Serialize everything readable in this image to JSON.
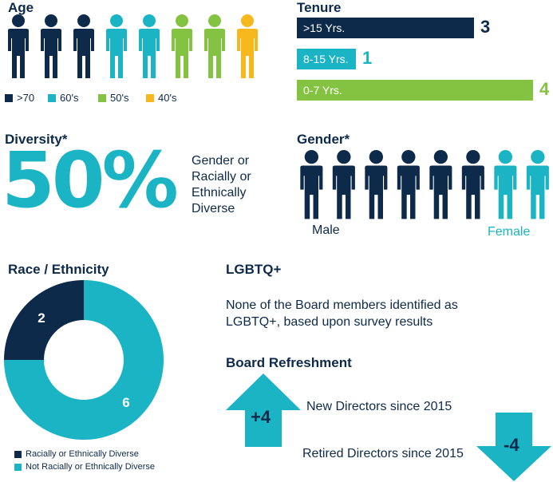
{
  "colors": {
    "navy": "#0d2a4a",
    "teal": "#1ab4c4",
    "green": "#84c341",
    "yellow": "#f6b81c"
  },
  "age": {
    "title": "Age",
    "people": [
      "navy",
      "navy",
      "navy",
      "teal",
      "teal",
      "green",
      "green",
      "yellow"
    ],
    "legend": [
      {
        "label": ">70",
        "color": "#0d2a4a"
      },
      {
        "label": "60's",
        "color": "#1ab4c4"
      },
      {
        "label": "50's",
        "color": "#84c341"
      },
      {
        "label": "40's",
        "color": "#f6b81c"
      }
    ]
  },
  "tenure": {
    "title": "Tenure",
    "bars": [
      {
        "label": ">15 Yrs.",
        "value": "3",
        "color": "#0d2a4a"
      },
      {
        "label": "8-15 Yrs.",
        "value": "1",
        "color": "#1ab4c4"
      },
      {
        "label": "0-7 Yrs.",
        "value": "4",
        "color": "#84c341"
      }
    ]
  },
  "diversity": {
    "title": "Diversity*",
    "percent": "50%",
    "description_lines": [
      "Gender or",
      "Racially or",
      "Ethnically",
      "Diverse"
    ]
  },
  "gender": {
    "title": "Gender*",
    "people": [
      "navy",
      "navy",
      "navy",
      "navy",
      "navy",
      "navy",
      "teal",
      "teal"
    ],
    "male_label": "Male",
    "female_label": "Female"
  },
  "race": {
    "title": "Race / Ethnicity",
    "legend": [
      {
        "label": "Racially or Ethnically Diverse",
        "color": "#0d2a4a"
      },
      {
        "label": "Not Racially or Ethnically Diverse",
        "color": "#1ab4c4"
      }
    ]
  },
  "lgbtq": {
    "title": "LGBTQ+",
    "text_lines": [
      "None of the Board members identified as",
      "LGBTQ+, based upon survey results"
    ]
  },
  "refreshment": {
    "title": "Board Refreshment",
    "new_value": "+4",
    "new_label": "New Directors since 2015",
    "retired_value": "-4",
    "retired_label": "Retired Directors since 2015"
  },
  "chart_data": [
    {
      "type": "bar",
      "title": "Tenure",
      "categories": [
        ">15 Yrs.",
        "8-15 Yrs.",
        "0-7 Yrs."
      ],
      "values": [
        3,
        1,
        4
      ],
      "orientation": "horizontal"
    },
    {
      "type": "pie",
      "title": "Race / Ethnicity",
      "categories": [
        "Racially or Ethnically Diverse",
        "Not Racially or Ethnically Diverse"
      ],
      "values": [
        2,
        6
      ],
      "donut": true,
      "legend": "bottom-left"
    }
  ]
}
